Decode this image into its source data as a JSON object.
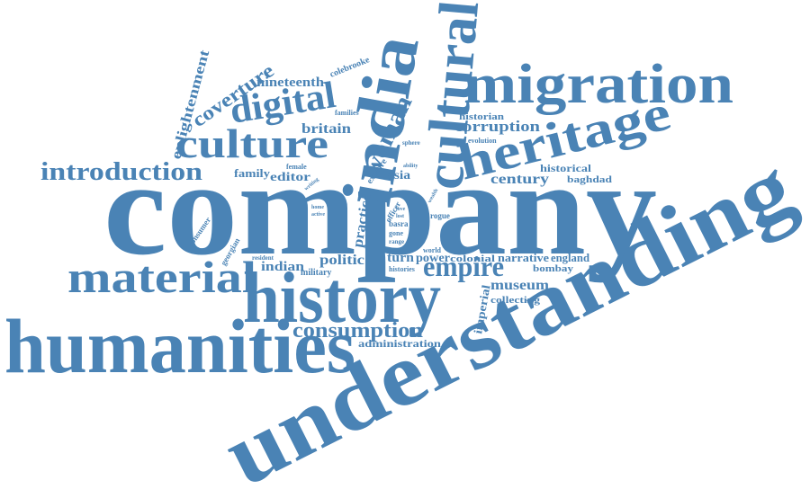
{
  "words": [
    "company",
    "understanding",
    "humanities",
    "history",
    "material",
    "migration",
    "heritage",
    "india",
    "cultural",
    "culture",
    "digital",
    "introduction",
    "enlightenment",
    "coverture",
    "nineteenth",
    "britain",
    "colebrooke",
    "families",
    "woman",
    "empire",
    "consumption",
    "administration",
    "politic",
    "practice",
    "indian",
    "military",
    "resident",
    "georgian",
    "consumer",
    "family",
    "editor",
    "female",
    "writing",
    "asia",
    "explore",
    "sphere",
    "ability",
    "officer",
    "basra",
    "gone",
    "range",
    "turn",
    "power",
    "histories",
    "world",
    "rogue",
    "wealth",
    "century",
    "historical",
    "baghdad",
    "historian",
    "corruption",
    "evolution",
    "colonial",
    "narrative",
    "england",
    "bombay",
    "museum",
    "collecting",
    "imperial",
    "home",
    "active",
    "love",
    "lost"
  ]
}
